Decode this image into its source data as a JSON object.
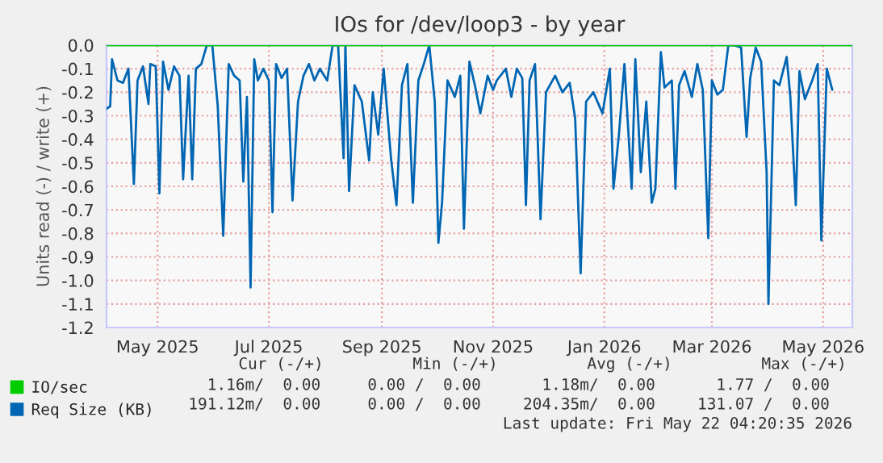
{
  "chart_data": {
    "type": "line",
    "title": "IOs for /dev/loop3 - by year",
    "ylabel": "Units read (-) / write (+)",
    "xlim": [
      "2025-04-03",
      "2026-05-17"
    ],
    "xticks": [
      {
        "value": "2025-05-01",
        "label": "May 2025"
      },
      {
        "value": "2025-07-01",
        "label": "Jul 2025"
      },
      {
        "value": "2025-09-01",
        "label": "Sep 2025"
      },
      {
        "value": "2025-11-01",
        "label": "Nov 2025"
      },
      {
        "value": "2026-01-01",
        "label": "Jan 2026"
      },
      {
        "value": "2026-03-01",
        "label": "Mar 2026"
      },
      {
        "value": "2026-05-01",
        "label": "May 2026"
      }
    ],
    "ylim": [
      -1.2,
      0.0
    ],
    "yticks": [
      {
        "value": 0.0,
        "label": "0.0"
      },
      {
        "value": -0.1,
        "label": "-0.1"
      },
      {
        "value": -0.2,
        "label": "-0.2"
      },
      {
        "value": -0.3,
        "label": "-0.3"
      },
      {
        "value": -0.4,
        "label": "-0.4"
      },
      {
        "value": -0.5,
        "label": "-0.5"
      },
      {
        "value": -0.6,
        "label": "-0.6"
      },
      {
        "value": -0.7,
        "label": "-0.7"
      },
      {
        "value": -0.8,
        "label": "-0.8"
      },
      {
        "value": -0.9,
        "label": "-0.9"
      },
      {
        "value": -1.0,
        "label": "-1.0"
      },
      {
        "value": -1.1,
        "label": "-1.1"
      },
      {
        "value": -1.2,
        "label": "-1.2"
      }
    ],
    "grid": true,
    "legend": "bottom",
    "series": [
      {
        "name": "IO/sec",
        "color": "#00cc00",
        "x": [
          "2025-04-03",
          "2026-05-17"
        ],
        "values": [
          0,
          0
        ]
      },
      {
        "name": "Req Size (KB)",
        "color": "#0066b3",
        "x": [
          "2025-04-03",
          "2025-04-05",
          "2025-04-06",
          "2025-04-09",
          "2025-04-12",
          "2025-04-15",
          "2025-04-18",
          "2025-04-20",
          "2025-04-23",
          "2025-04-26",
          "2025-04-27",
          "2025-04-30",
          "2025-05-02",
          "2025-05-04",
          "2025-05-07",
          "2025-05-10",
          "2025-05-13",
          "2025-05-15",
          "2025-05-18",
          "2025-05-20",
          "2025-05-22",
          "2025-05-25",
          "2025-05-28",
          "2025-05-31",
          "2025-06-03",
          "2025-06-06",
          "2025-06-09",
          "2025-06-12",
          "2025-06-15",
          "2025-06-17",
          "2025-06-19",
          "2025-06-21",
          "2025-06-23",
          "2025-06-25",
          "2025-06-28",
          "2025-07-01",
          "2025-07-03",
          "2025-07-05",
          "2025-07-08",
          "2025-07-11",
          "2025-07-14",
          "2025-07-17",
          "2025-07-20",
          "2025-07-23",
          "2025-07-26",
          "2025-07-29",
          "2025-08-02",
          "2025-08-05",
          "2025-08-08",
          "2025-08-11",
          "2025-08-12",
          "2025-08-14",
          "2025-08-17",
          "2025-08-21",
          "2025-08-25",
          "2025-08-27",
          "2025-08-30",
          "2025-09-02",
          "2025-09-06",
          "2025-09-09",
          "2025-09-12",
          "2025-09-15",
          "2025-09-18",
          "2025-09-21",
          "2025-09-24",
          "2025-09-27",
          "2025-09-30",
          "2025-10-02",
          "2025-10-04",
          "2025-10-07",
          "2025-10-11",
          "2025-10-14",
          "2025-10-16",
          "2025-10-19",
          "2025-10-22",
          "2025-10-25",
          "2025-10-29",
          "2025-11-01",
          "2025-11-03",
          "2025-11-08",
          "2025-11-11",
          "2025-11-14",
          "2025-11-17",
          "2025-11-19",
          "2025-11-21",
          "2025-11-24",
          "2025-11-27",
          "2025-11-30",
          "2025-12-05",
          "2025-12-09",
          "2025-12-13",
          "2025-12-16",
          "2025-12-19",
          "2025-12-22",
          "2025-12-26",
          "2025-12-31",
          "2026-01-04",
          "2026-01-06",
          "2026-01-09",
          "2026-01-12",
          "2026-01-16",
          "2026-01-18",
          "2026-01-21",
          "2026-01-24",
          "2026-01-27",
          "2026-01-29",
          "2026-02-01",
          "2026-02-03",
          "2026-02-07",
          "2026-02-09",
          "2026-02-11",
          "2026-02-14",
          "2026-02-18",
          "2026-02-21",
          "2026-02-24",
          "2026-02-27",
          "2026-03-01",
          "2026-03-04",
          "2026-03-07",
          "2026-03-10",
          "2026-03-13",
          "2026-03-17",
          "2026-03-20",
          "2026-03-22",
          "2026-03-25",
          "2026-03-28",
          "2026-03-31",
          "2026-04-01",
          "2026-04-04",
          "2026-04-07",
          "2026-04-11",
          "2026-04-13",
          "2026-04-16",
          "2026-04-18",
          "2026-04-21",
          "2026-04-25",
          "2026-04-28",
          "2026-04-30",
          "2026-05-03",
          "2026-05-06"
        ],
        "values": [
          -0.27,
          -0.26,
          -0.06,
          -0.15,
          -0.16,
          -0.1,
          -0.59,
          -0.15,
          -0.09,
          -0.25,
          -0.08,
          -0.09,
          -0.63,
          -0.07,
          -0.19,
          -0.09,
          -0.13,
          -0.57,
          -0.13,
          -0.57,
          -0.1,
          -0.08,
          0.0,
          0.0,
          -0.26,
          -0.81,
          -0.08,
          -0.13,
          -0.15,
          -0.58,
          -0.22,
          -1.03,
          -0.06,
          -0.15,
          -0.1,
          -0.15,
          -0.71,
          -0.08,
          -0.14,
          -0.1,
          -0.66,
          -0.24,
          -0.13,
          -0.08,
          -0.15,
          -0.1,
          -0.15,
          0.0,
          0.0,
          -0.48,
          0.0,
          -0.62,
          -0.17,
          -0.24,
          -0.49,
          -0.2,
          -0.38,
          -0.1,
          -0.48,
          -0.68,
          -0.17,
          -0.08,
          -0.67,
          -0.15,
          -0.08,
          0.0,
          -0.24,
          -0.84,
          -0.67,
          -0.15,
          -0.22,
          -0.13,
          -0.78,
          -0.07,
          -0.17,
          -0.29,
          -0.13,
          -0.19,
          -0.15,
          -0.1,
          -0.22,
          -0.1,
          -0.14,
          -0.68,
          -0.15,
          -0.08,
          -0.74,
          -0.2,
          -0.13,
          -0.2,
          -0.16,
          -0.31,
          -0.97,
          -0.24,
          -0.2,
          -0.29,
          -0.1,
          -0.61,
          -0.38,
          -0.08,
          -0.61,
          -0.06,
          -0.54,
          -0.24,
          -0.67,
          -0.61,
          -0.03,
          -0.18,
          -0.15,
          -0.61,
          -0.17,
          -0.11,
          -0.22,
          -0.08,
          -0.19,
          -0.82,
          -0.15,
          -0.21,
          -0.19,
          0.0,
          0.0,
          -0.01,
          -0.39,
          -0.14,
          -0.01,
          -0.07,
          -0.54,
          -1.1,
          -0.15,
          -0.17,
          -0.05,
          -0.22,
          -0.68,
          -0.11,
          -0.23,
          -0.15,
          -0.08,
          -0.83,
          -0.1,
          -0.19
        ]
      }
    ],
    "annotations": [
      "Cur (-/+)",
      "Min (-/+)",
      "Avg (-/+)",
      "Max (-/+)",
      "1.16m/  0.00",
      "0.00 /  0.00",
      "1.18m/  0.00",
      "1.77 /  0.00",
      "191.12m/  0.00",
      "0.00 /  0.00",
      "204.35m/  0.00",
      "131.07 /  0.00",
      "Last update: Fri May 22 04:20:35 2026"
    ]
  }
}
